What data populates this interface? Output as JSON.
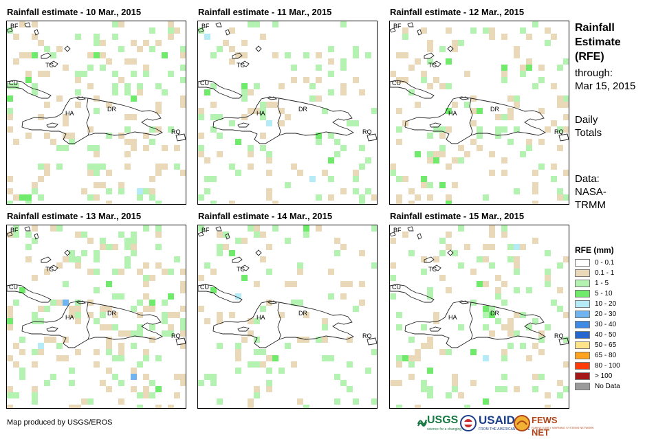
{
  "panels": [
    {
      "title": "Rainfall estimate - 10 Mar., 2015",
      "seed": 11,
      "wet": 0.2,
      "green": 0.52
    },
    {
      "title": "Rainfall estimate - 11 Mar., 2015",
      "seed": 23,
      "wet": 0.15,
      "green": 0.4
    },
    {
      "title": "Rainfall estimate - 12 Mar., 2015",
      "seed": 37,
      "wet": 0.17,
      "green": 0.55
    },
    {
      "title": "Rainfall estimate - 13 Mar., 2015",
      "seed": 41,
      "wet": 0.24,
      "green": 0.48
    },
    {
      "title": "Rainfall estimate - 14 Mar., 2015",
      "seed": 53,
      "wet": 0.13,
      "green": 0.45
    },
    {
      "title": "Rainfall estimate - 15 Mar., 2015",
      "seed": 67,
      "wet": 0.13,
      "green": 0.42
    }
  ],
  "map_labels": {
    "bf": "BF",
    "tc": "TC",
    "cu": "CU",
    "ha": "HA",
    "dr": "DR",
    "rq": "RQ"
  },
  "side_panel": {
    "title_lines": [
      "Rainfall",
      "Estimate",
      "(RFE)"
    ],
    "through": "through:",
    "date": "Mar 15, 2015",
    "daily": "Daily",
    "totals": "Totals",
    "data_label": "Data:",
    "data_source_1": "NASA-",
    "data_source_2": "TRMM"
  },
  "legend": {
    "title": "RFE (mm)",
    "items": [
      {
        "label": "0 - 0.1",
        "color": "#ffffff"
      },
      {
        "label": "0.1 - 1",
        "color": "#ead9b9"
      },
      {
        "label": "1 - 5",
        "color": "#b3f2b0"
      },
      {
        "label": "5 - 10",
        "color": "#70ea6b"
      },
      {
        "label": "10 - 20",
        "color": "#b4ebf6"
      },
      {
        "label": "20 - 30",
        "color": "#6fb4ef"
      },
      {
        "label": "30 - 40",
        "color": "#3f8ae3"
      },
      {
        "label": "40 - 50",
        "color": "#2566cf"
      },
      {
        "label": "50 - 65",
        "color": "#ffe48a"
      },
      {
        "label": "65 - 80",
        "color": "#ffa21d"
      },
      {
        "label": "80 - 100",
        "color": "#ff3b0a"
      },
      {
        "label": "> 100",
        "color": "#a4181a"
      },
      {
        "label": "No Data",
        "color": "#9b9b9b"
      }
    ]
  },
  "credit": "Map produced by USGS/EROS",
  "logos": {
    "usgs": "USGS",
    "usgs_tagline": "science for a changing world",
    "usaid": "USAID",
    "usaid_tagline": "FROM THE AMERICAN PEOPLE",
    "fewsnet": "FEWS NET",
    "fewsnet_tagline": "FAMINE EARLY WARNING SYSTEMS NETWORK"
  }
}
